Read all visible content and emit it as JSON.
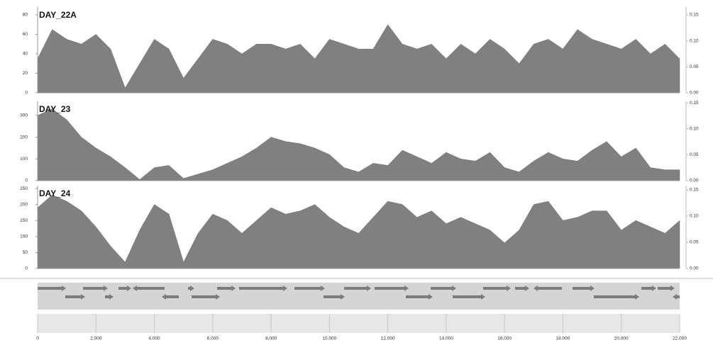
{
  "chart_data": [
    {
      "type": "area",
      "title": "DAY_22A",
      "color": "#808080",
      "x": [
        0,
        500,
        1000,
        1500,
        2000,
        2500,
        3000,
        3500,
        4000,
        4500,
        5000,
        5500,
        6000,
        6500,
        7000,
        7500,
        8000,
        8500,
        9000,
        9500,
        10000,
        10500,
        11000,
        11500,
        12000,
        12500,
        13000,
        13500,
        14000,
        14500,
        15000,
        15500,
        16000,
        16500,
        17000,
        17500,
        18000,
        18500,
        19000,
        19500,
        20000,
        20500,
        21000,
        21500,
        22000
      ],
      "values": [
        35,
        65,
        55,
        50,
        60,
        45,
        5,
        30,
        55,
        45,
        15,
        35,
        55,
        50,
        40,
        50,
        50,
        45,
        50,
        35,
        55,
        50,
        45,
        45,
        70,
        50,
        45,
        50,
        35,
        50,
        40,
        55,
        45,
        30,
        50,
        55,
        45,
        65,
        55,
        50,
        45,
        55,
        40,
        50,
        35
      ],
      "xlim": [
        0,
        22000
      ],
      "ylim": [
        0,
        88
      ],
      "yticks": [
        0,
        20,
        40,
        60,
        80
      ],
      "y2lim": [
        0,
        0.165
      ],
      "y2ticks": [
        {
          "value": 0,
          "label": "0.00"
        },
        {
          "value": 0.05,
          "label": "0.05"
        },
        {
          "value": 0.1,
          "label": "0.10"
        },
        {
          "value": 0.15,
          "label": "0.15"
        }
      ]
    },
    {
      "type": "area",
      "title": "DAY_23",
      "color": "#808080",
      "x": [
        0,
        500,
        1000,
        1500,
        2000,
        2500,
        3000,
        3500,
        4000,
        4500,
        5000,
        5500,
        6000,
        6500,
        7000,
        7500,
        8000,
        8500,
        9000,
        9500,
        10000,
        10500,
        11000,
        11500,
        12000,
        12500,
        13000,
        13500,
        14000,
        14500,
        15000,
        15500,
        16000,
        16500,
        17000,
        17500,
        18000,
        18500,
        19000,
        19500,
        20000,
        20500,
        21000,
        21500,
        22000
      ],
      "values": [
        300,
        330,
        280,
        200,
        150,
        110,
        60,
        5,
        60,
        70,
        10,
        30,
        50,
        80,
        110,
        150,
        200,
        180,
        170,
        150,
        120,
        60,
        40,
        80,
        70,
        140,
        110,
        80,
        130,
        100,
        90,
        130,
        60,
        40,
        90,
        130,
        100,
        90,
        140,
        180,
        110,
        150,
        60,
        50,
        50
      ],
      "xlim": [
        0,
        22000
      ],
      "ylim": [
        0,
        365
      ],
      "yticks": [
        0,
        100,
        200,
        300
      ],
      "y2lim": [
        0,
        0.153
      ],
      "y2ticks": [
        {
          "value": 0,
          "label": "0.00"
        },
        {
          "value": 0.05,
          "label": "0.05"
        },
        {
          "value": 0.1,
          "label": "0.10"
        },
        {
          "value": 0.15,
          "label": "0.15"
        }
      ]
    },
    {
      "type": "area",
      "title": "DAY_24",
      "color": "#808080",
      "x": [
        0,
        500,
        1000,
        1500,
        2000,
        2500,
        3000,
        3500,
        4000,
        4500,
        5000,
        5500,
        6000,
        6500,
        7000,
        7500,
        8000,
        8500,
        9000,
        9500,
        10000,
        10500,
        11000,
        11500,
        12000,
        12500,
        13000,
        13500,
        14000,
        14500,
        15000,
        15500,
        16000,
        16500,
        17000,
        17500,
        18000,
        18500,
        19000,
        19500,
        20000,
        20500,
        21000,
        21500,
        22000
      ],
      "values": [
        190,
        230,
        210,
        180,
        130,
        70,
        20,
        120,
        200,
        170,
        20,
        110,
        170,
        150,
        110,
        150,
        190,
        170,
        180,
        200,
        160,
        130,
        110,
        160,
        210,
        200,
        160,
        180,
        140,
        160,
        140,
        120,
        80,
        120,
        200,
        210,
        150,
        160,
        180,
        180,
        120,
        150,
        130,
        110,
        150
      ],
      "xlim": [
        0,
        22000
      ],
      "ylim": [
        0,
        259
      ],
      "yticks": [
        0,
        50,
        100,
        150,
        200,
        250
      ],
      "y2lim": [
        0,
        0.158
      ],
      "y2ticks": [
        {
          "value": 0,
          "label": "0.00"
        },
        {
          "value": 0.05,
          "label": "0.05"
        },
        {
          "value": 0.1,
          "label": "0.10"
        },
        {
          "value": 0.15,
          "label": "0.15"
        }
      ]
    }
  ],
  "ruler": {
    "xlim": [
      0,
      22000
    ],
    "xticks": [
      0,
      {
        "value": 2000,
        "label": "2,000"
      },
      {
        "value": 4000,
        "label": "4,000"
      },
      {
        "value": 6000,
        "label": "6,000"
      },
      {
        "value": 8000,
        "label": "8,000"
      },
      {
        "value": 10000,
        "label": "10,000"
      },
      {
        "value": 12000,
        "label": "12,000"
      },
      {
        "value": 14000,
        "label": "14,000"
      },
      {
        "value": 16000,
        "label": "16,000"
      },
      {
        "value": 18000,
        "label": "18,000"
      },
      {
        "value": 20000,
        "label": "20,000"
      },
      {
        "value": 22000,
        "label": "22,000"
      }
    ]
  }
}
